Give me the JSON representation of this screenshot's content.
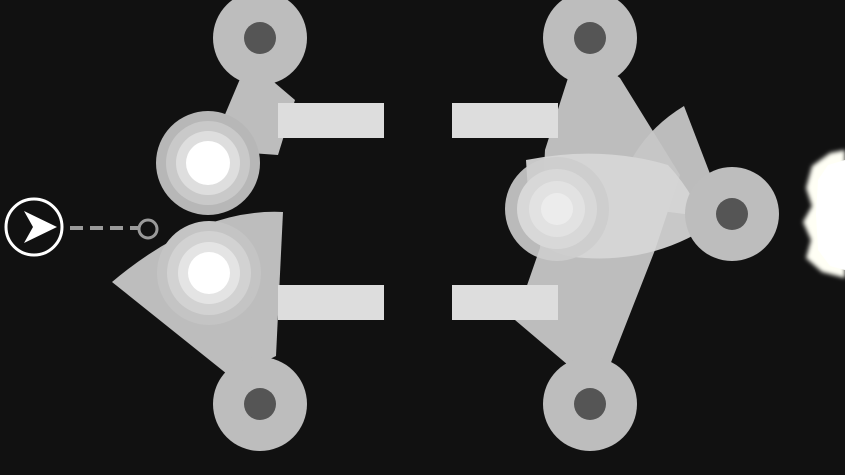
{
  "scene": {
    "background_color": "#111111",
    "pivots": [
      {
        "name": "pivot-top-left"
      },
      {
        "name": "pivot-bottom-left"
      },
      {
        "name": "pivot-top-right"
      },
      {
        "name": "pivot-bottom-right"
      },
      {
        "name": "pivot-right-arm"
      }
    ],
    "colors": {
      "pivot_ring": "#bdbdbd",
      "pivot_hole": "#555555",
      "paddle": "#bdbdbd",
      "bar": "#dddddd",
      "player_outline": "#ffffff",
      "trajectory": "#9a9a9a",
      "exit_portal": "#fffff5"
    },
    "player": {
      "icon": "arrow-cursor-icon"
    },
    "exit": {
      "icon": "glowing-exit-icon"
    }
  }
}
